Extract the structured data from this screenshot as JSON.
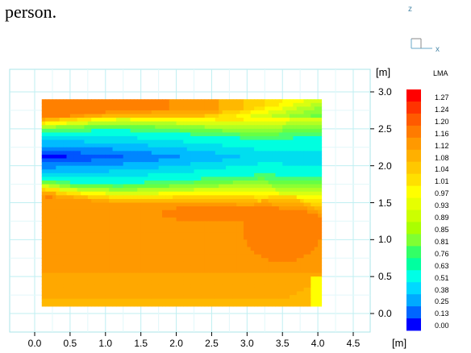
{
  "caption": "person.",
  "triad": {
    "z_label": "z",
    "x_label": "x"
  },
  "chart_data": {
    "type": "heatmap",
    "title": "",
    "x_unit": "[m]",
    "y_unit": "[m]",
    "x_ticks": [
      "0.0",
      "0.5",
      "1.0",
      "1.5",
      "2.0",
      "2.5",
      "3.0",
      "3.5",
      "4.0",
      "4.5"
    ],
    "y_ticks": [
      "3.0",
      "2.5",
      "2.0",
      "1.5",
      "1.0",
      "0.5",
      "0.0"
    ],
    "xlim": [
      -0.4,
      4.5
    ],
    "ylim": [
      -0.22,
      3.2
    ],
    "domain": {
      "x": [
        0.1,
        4.05
      ],
      "y": [
        0.1,
        2.9
      ]
    },
    "grid": true,
    "colorbar": {
      "title": "LMA",
      "labels": [
        "1.27",
        "1.24",
        "1.20",
        "1.16",
        "1.12",
        "1.08",
        "1.04",
        "1.01",
        "0.97",
        "0.93",
        "0.89",
        "0.85",
        "0.81",
        "0.76",
        "0.63",
        "0.51",
        "0.38",
        "0.25",
        "0.13",
        "0.00"
      ],
      "colors": [
        "#ff0000",
        "#ff3300",
        "#ff5a00",
        "#ff7b00",
        "#ff9900",
        "#ffb000",
        "#ffc800",
        "#ffe000",
        "#ffff00",
        "#e6ff00",
        "#ccff00",
        "#aaff00",
        "#7fff33",
        "#33ff66",
        "#00ffa0",
        "#00ffe6",
        "#00d9ff",
        "#00aaff",
        "#0066ff",
        "#0000ff"
      ]
    },
    "field": {
      "description": "LMA contour: jet layer near y=2.1 (low values), warm elsewhere",
      "level_values": [
        1.27,
        1.24,
        1.2,
        1.16,
        1.12,
        1.08,
        1.04,
        1.01,
        0.97,
        0.93,
        0.89,
        0.85,
        0.81,
        0.76,
        0.63,
        0.51,
        0.38,
        0.25,
        0.13,
        0.0
      ]
    }
  }
}
